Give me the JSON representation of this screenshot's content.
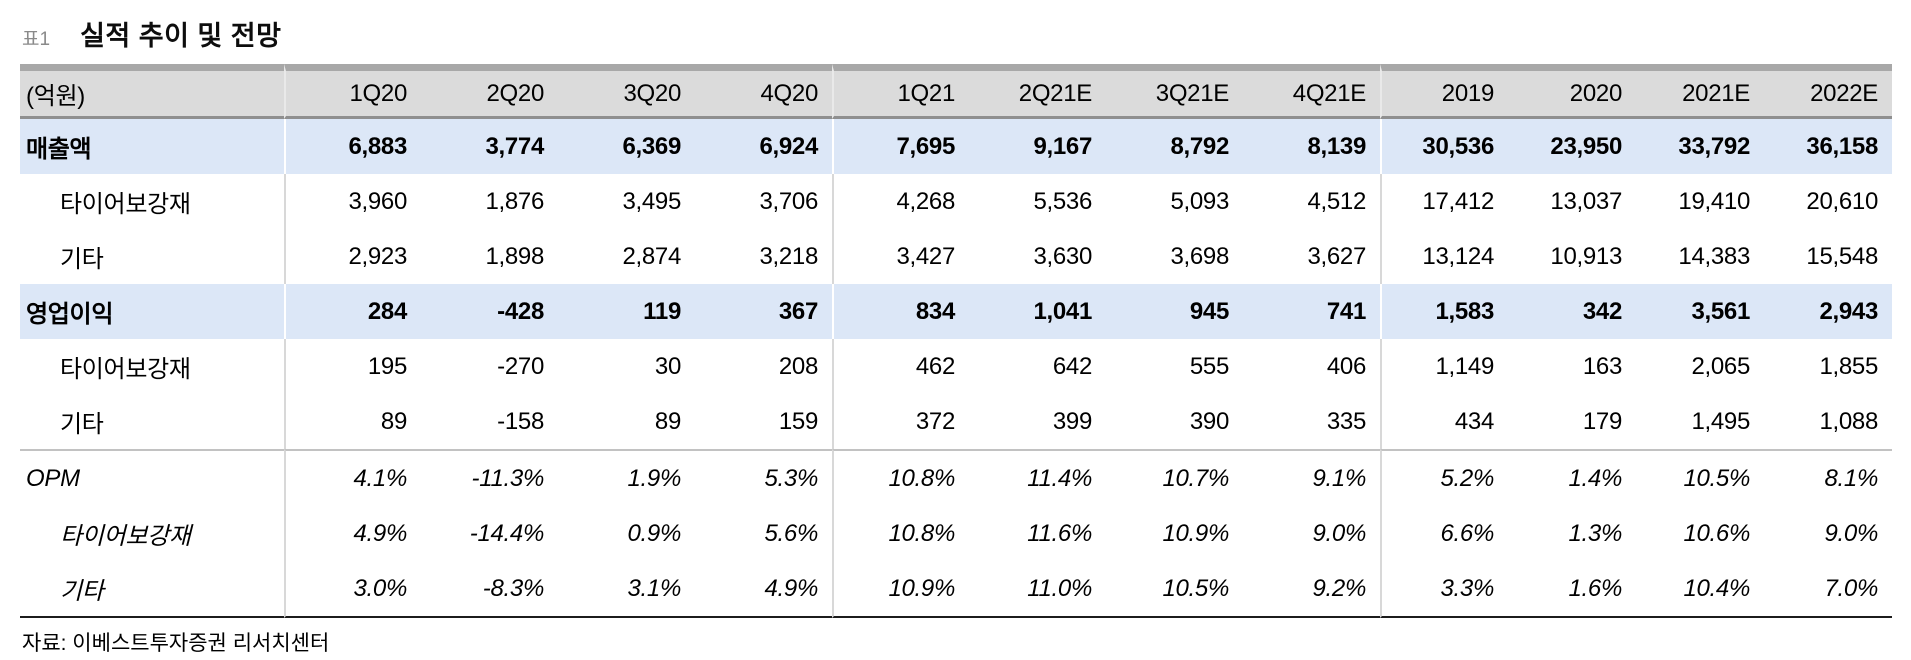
{
  "title": {
    "tag": "표1",
    "text": "실적 추이 및 전망"
  },
  "table": {
    "unit_label": "(억원)",
    "columns": [
      "1Q20",
      "2Q20",
      "3Q20",
      "4Q20",
      "1Q21",
      "2Q21E",
      "3Q21E",
      "4Q21E",
      "2019",
      "2020",
      "2021E",
      "2022E"
    ],
    "group_start_indexes": [
      0,
      4,
      8
    ],
    "rows": [
      {
        "label": "매출액",
        "style": "highlight",
        "indent": false,
        "separator_above": false,
        "values": [
          "6,883",
          "3,774",
          "6,369",
          "6,924",
          "7,695",
          "9,167",
          "8,792",
          "8,139",
          "30,536",
          "23,950",
          "33,792",
          "36,158"
        ]
      },
      {
        "label": "타이어보강재",
        "style": "normal",
        "indent": true,
        "separator_above": false,
        "values": [
          "3,960",
          "1,876",
          "3,495",
          "3,706",
          "4,268",
          "5,536",
          "5,093",
          "4,512",
          "17,412",
          "13,037",
          "19,410",
          "20,610"
        ]
      },
      {
        "label": "기타",
        "style": "normal",
        "indent": true,
        "separator_above": false,
        "values": [
          "2,923",
          "1,898",
          "2,874",
          "3,218",
          "3,427",
          "3,630",
          "3,698",
          "3,627",
          "13,124",
          "10,913",
          "14,383",
          "15,548"
        ]
      },
      {
        "label": "영업이익",
        "style": "highlight",
        "indent": false,
        "separator_above": false,
        "values": [
          "284",
          "-428",
          "119",
          "367",
          "834",
          "1,041",
          "945",
          "741",
          "1,583",
          "342",
          "3,561",
          "2,943"
        ]
      },
      {
        "label": "타이어보강재",
        "style": "normal",
        "indent": true,
        "separator_above": false,
        "values": [
          "195",
          "-270",
          "30",
          "208",
          "462",
          "642",
          "555",
          "406",
          "1,149",
          "163",
          "2,065",
          "1,855"
        ]
      },
      {
        "label": "기타",
        "style": "normal",
        "indent": true,
        "separator_above": false,
        "values": [
          "89",
          "-158",
          "89",
          "159",
          "372",
          "399",
          "390",
          "335",
          "434",
          "179",
          "1,495",
          "1,088"
        ]
      },
      {
        "label": "OPM",
        "style": "italic",
        "indent": false,
        "separator_above": true,
        "values": [
          "4.1%",
          "-11.3%",
          "1.9%",
          "5.3%",
          "10.8%",
          "11.4%",
          "10.7%",
          "9.1%",
          "5.2%",
          "1.4%",
          "10.5%",
          "8.1%"
        ]
      },
      {
        "label": "타이어보강재",
        "style": "italic",
        "indent": true,
        "separator_above": false,
        "values": [
          "4.9%",
          "-14.4%",
          "0.9%",
          "5.6%",
          "10.8%",
          "11.6%",
          "10.9%",
          "9.0%",
          "6.6%",
          "1.3%",
          "10.6%",
          "9.0%"
        ]
      },
      {
        "label": "기타",
        "style": "italic",
        "indent": true,
        "separator_above": false,
        "values": [
          "3.0%",
          "-8.3%",
          "3.1%",
          "4.9%",
          "10.9%",
          "11.0%",
          "10.5%",
          "9.2%",
          "3.3%",
          "1.6%",
          "10.4%",
          "7.0%"
        ]
      }
    ]
  },
  "footer": {
    "source": "자료: 이베스트투자증권 리서치센터"
  },
  "colors": {
    "header_bg": "#dbdbdb",
    "highlight_row_bg": "#dce7f7",
    "top_bar": "#a8a8a8",
    "header_bottom_border": "#8f8f8f",
    "group_divider": "#d8d8d8",
    "opm_separator": "#c2c2c2",
    "bottom_border": "#1c1c1c"
  },
  "layout_hint": {
    "label_col_width": 264,
    "quarter_col_width": 137,
    "annual_col_width": 128
  }
}
